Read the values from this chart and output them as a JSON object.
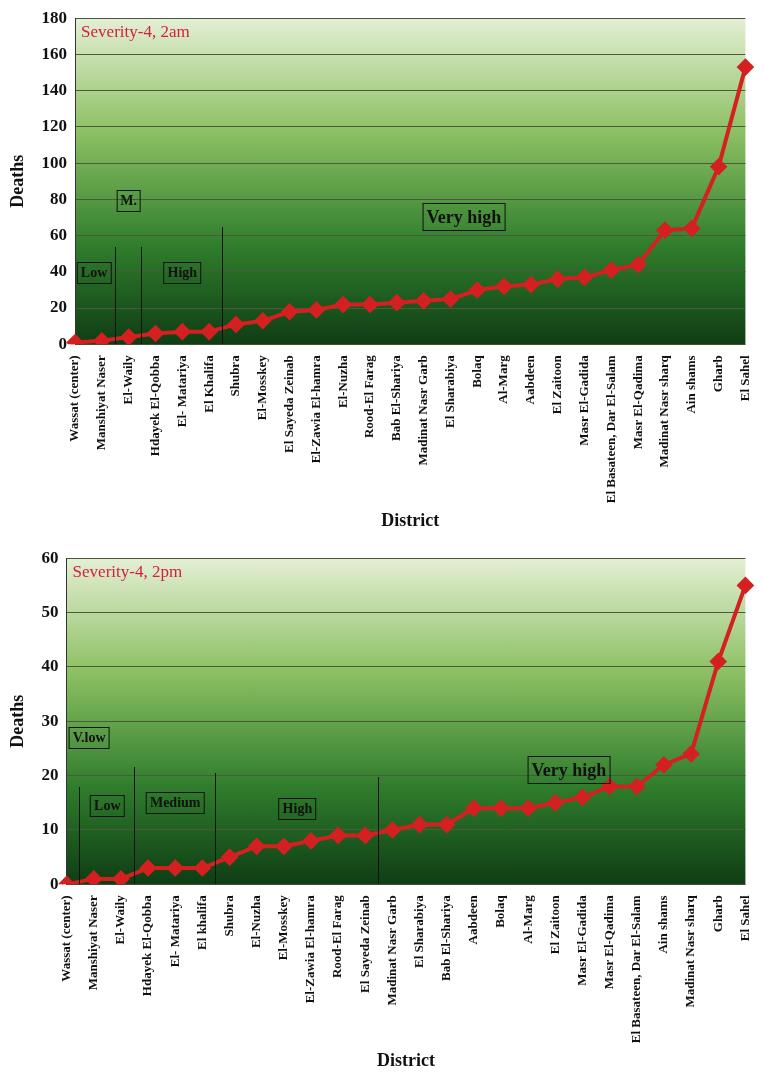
{
  "chart_data": [
    {
      "type": "line",
      "title": "Severity-4, 2am",
      "xlabel": "District",
      "ylabel": "Deaths",
      "categories": [
        "Wassat (center)",
        "Manshiyat Naser",
        "El-Waily",
        "Hdayek El-Qobba",
        "El- Matariya",
        "El Khalifa",
        "Shubra",
        "El-Mosskey",
        "El Sayeda Zeinab",
        "El-Zawia El-hamra",
        "El-Nuzha",
        "Rood-El Farag",
        "Bab El-Shariya",
        "Madinat Nasr Garb",
        "El Sharabiya",
        "Bolaq",
        "Al-Marg",
        "Aabdeen",
        "El Zaitoon",
        "Masr El-Gadida",
        "El Basateen, Dar El-Salam",
        "Masr El-Qadima",
        "Madinat Nasr sharq",
        "Ain shams",
        "Gharb",
        "El Sahel"
      ],
      "series": [
        {
          "color": "#d42020",
          "values": [
            1,
            2,
            4,
            6,
            7,
            7,
            11,
            13,
            18,
            19,
            22,
            22,
            23,
            24,
            25,
            30,
            32,
            33,
            36,
            37,
            41,
            44,
            63,
            64,
            98,
            153
          ]
        }
      ],
      "ylim": [
        0,
        180
      ],
      "yticks": [
        0,
        20,
        40,
        60,
        80,
        100,
        120,
        140,
        160,
        180
      ],
      "grid": "y",
      "marker": "diamond",
      "line_style": "solid",
      "legend": false,
      "annotations": [
        "Low",
        "M.",
        "High",
        "Very high"
      ]
    },
    {
      "type": "line",
      "title": "Severity-4, 2pm",
      "xlabel": "District",
      "ylabel": "Deaths",
      "categories": [
        "Wassat (center)",
        "Manshiyat Naser",
        "El-Waily",
        "Hdayek El-Qobba",
        "El- Matariya",
        "El khalifa",
        "Shubra",
        "El-Nuzha",
        "El-Mosskey",
        "El-Zawia El-hamra",
        "Rood-El Farag",
        "El Sayeda Zeinab",
        "Madinat Nasr Garb",
        "El Sharabiya",
        "Bab El-Shariya",
        "Aabdeen",
        "Bolaq",
        "Al-Marg",
        "El Zaitoon",
        "Masr El-Gadida",
        "Masr El-Qadima",
        "El Basateen, Dar El-Salam",
        "Ain shams",
        "Madinat Nasr sharq",
        "Gharb",
        "El Sahel"
      ],
      "series": [
        {
          "color": "#d42020",
          "values": [
            0,
            1,
            1,
            3,
            3,
            3,
            5,
            7,
            7,
            8,
            9,
            9,
            10,
            11,
            11,
            14,
            14,
            14,
            15,
            16,
            18,
            18,
            22,
            24,
            41,
            55
          ]
        }
      ],
      "ylim": [
        0,
        60
      ],
      "yticks": [
        0,
        10,
        20,
        30,
        40,
        50,
        60
      ],
      "grid": "y",
      "marker": "diamond",
      "line_style": "solid",
      "legend": false,
      "annotations": [
        "V.low",
        "Low",
        "Medium",
        "High",
        "Very high"
      ]
    }
  ]
}
